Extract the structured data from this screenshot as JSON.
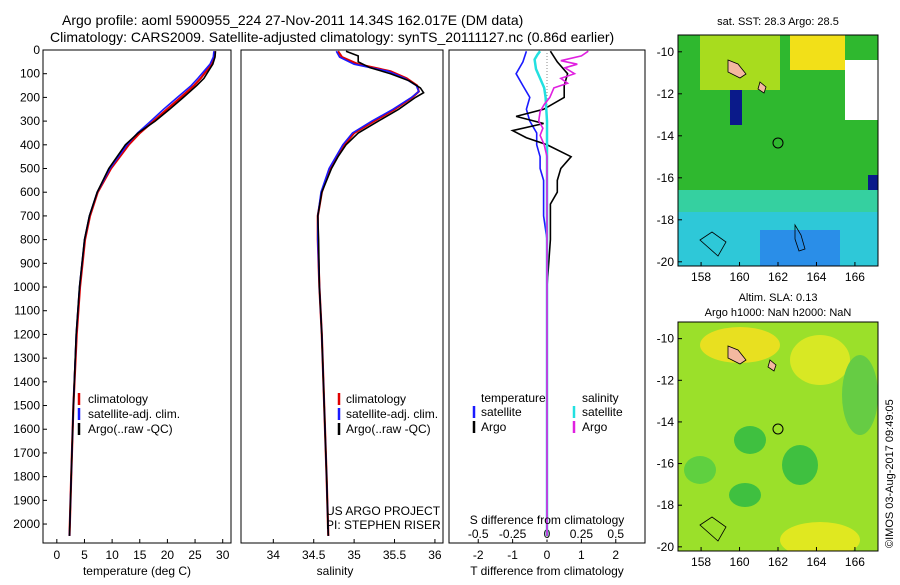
{
  "header": {
    "line1": "Argo profile: aoml 5900955_224 27-Nov-2011 14.34S 162.017E (DM data)",
    "line2": "Climatology: CARS2009. Satellite-adjusted climatology: synTS_20111127.nc (0.86d earlier)"
  },
  "colors": {
    "climatology": "#e00000",
    "satellite": "#1a1aff",
    "argo": "#000000",
    "sal_satellite": "#22e0e0",
    "sal_argo": "#e020e0"
  },
  "depth_axis": {
    "ticks": [
      0,
      100,
      200,
      300,
      400,
      500,
      600,
      700,
      800,
      900,
      1000,
      1100,
      1200,
      1300,
      1400,
      1500,
      1600,
      1700,
      1800,
      1900,
      2000
    ],
    "range": [
      0,
      2080
    ]
  },
  "chart_data": [
    {
      "type": "line",
      "id": "temperature",
      "xlabel": "temperature (deg C)",
      "xticks": [
        0,
        5,
        10,
        15,
        20,
        25,
        30
      ],
      "xlim": [
        -2.5,
        31.5
      ],
      "legend": [
        "climatology",
        "satellite-adj. clim.",
        "Argo(..raw -QC)"
      ],
      "series": [
        {
          "name": "climatology",
          "depth": [
            5,
            30,
            60,
            90,
            120,
            150,
            200,
            250,
            300,
            350,
            400,
            500,
            600,
            700,
            800,
            1000,
            1200,
            1500,
            1800,
            2050
          ],
          "values": [
            28.6,
            28.5,
            28.0,
            27.0,
            26.0,
            24.8,
            22.4,
            19.9,
            17.5,
            15.0,
            13.0,
            9.8,
            7.4,
            6.0,
            5.1,
            4.2,
            3.6,
            3.0,
            2.6,
            2.3
          ]
        },
        {
          "name": "satellite",
          "depth": [
            5,
            30,
            60,
            90,
            120,
            150,
            200,
            250,
            300,
            350,
            400,
            500,
            600,
            700,
            800,
            1000,
            1200,
            1500,
            1800,
            2050
          ],
          "values": [
            28.4,
            28.3,
            27.7,
            26.6,
            25.5,
            24.3,
            21.8,
            19.3,
            17.0,
            14.6,
            12.7,
            9.6,
            7.3,
            5.9,
            5.0,
            4.1,
            3.5,
            3.0,
            2.6,
            2.3
          ]
        },
        {
          "name": "argo",
          "depth": [
            5,
            30,
            60,
            90,
            120,
            150,
            200,
            250,
            300,
            350,
            400,
            500,
            600,
            700,
            800,
            1000,
            1200,
            1500,
            1800,
            2050
          ],
          "values": [
            28.7,
            28.6,
            28.2,
            27.4,
            26.6,
            25.3,
            22.9,
            20.4,
            17.8,
            14.7,
            12.4,
            9.4,
            7.3,
            5.9,
            5.0,
            4.1,
            3.5,
            3.0,
            2.6,
            2.3
          ]
        }
      ]
    },
    {
      "type": "line",
      "id": "salinity",
      "xlabel": "salinity",
      "xticks": [
        34,
        34.5,
        35,
        35.5,
        36
      ],
      "xlim": [
        33.6,
        36.1
      ],
      "legend": [
        "climatology",
        "satellite-adj. clim.",
        "Argo(..raw -QC)"
      ],
      "series": [
        {
          "name": "climatology",
          "depth": [
            5,
            30,
            60,
            90,
            120,
            150,
            175,
            200,
            250,
            300,
            350,
            400,
            500,
            600,
            700,
            800,
            1000,
            1200,
            1500,
            1800,
            2050
          ],
          "values": [
            34.8,
            34.85,
            35.05,
            35.45,
            35.65,
            35.78,
            35.8,
            35.72,
            35.5,
            35.25,
            35.0,
            34.88,
            34.7,
            34.6,
            34.55,
            34.55,
            34.57,
            34.6,
            34.63,
            34.66,
            34.68
          ]
        },
        {
          "name": "satellite",
          "depth": [
            5,
            30,
            60,
            90,
            120,
            150,
            175,
            200,
            250,
            300,
            350,
            400,
            500,
            600,
            700,
            800,
            1000,
            1200,
            1500,
            1800,
            2050
          ],
          "values": [
            34.78,
            34.82,
            35.0,
            35.42,
            35.63,
            35.77,
            35.8,
            35.71,
            35.48,
            35.22,
            34.98,
            34.86,
            34.69,
            34.59,
            34.55,
            34.55,
            34.57,
            34.6,
            34.63,
            34.66,
            34.68
          ]
        },
        {
          "name": "argo",
          "depth": [
            5,
            25,
            50,
            75,
            100,
            130,
            160,
            180,
            200,
            250,
            300,
            350,
            400,
            450,
            500,
            600,
            700,
            800,
            1000,
            1200,
            1500,
            1800,
            2050
          ],
          "values": [
            34.9,
            35.05,
            35.05,
            35.2,
            35.45,
            35.68,
            35.82,
            35.86,
            35.76,
            35.55,
            35.3,
            35.05,
            34.9,
            34.8,
            34.72,
            34.6,
            34.55,
            34.56,
            34.57,
            34.6,
            34.63,
            34.66,
            34.68
          ]
        }
      ]
    },
    {
      "type": "line",
      "id": "difference",
      "xlabel": "T difference from climatology",
      "top_xlabel": "S difference from climatology",
      "xticks": [
        -2,
        -1,
        0,
        1,
        2
      ],
      "top_xticks": [
        "-0.5",
        "-0.25",
        "0",
        "0.25",
        "0.5"
      ],
      "xlim": [
        -2.85,
        2.85
      ],
      "legend_left_title": "temperature",
      "legend_right_title": "salinity",
      "legend_left": [
        "satellite",
        "Argo"
      ],
      "legend_right": [
        "satellite",
        "Argo"
      ],
      "series": [
        {
          "name": "T satellite",
          "depth": [
            5,
            50,
            100,
            150,
            200,
            250,
            300,
            350,
            400,
            450,
            500,
            550,
            600,
            700,
            800,
            1000,
            1500,
            2050
          ],
          "values": [
            -0.6,
            -0.7,
            -0.9,
            -0.7,
            -0.5,
            -0.6,
            -0.5,
            -0.3,
            -0.3,
            -0.2,
            -0.2,
            -0.1,
            -0.1,
            -0.1,
            0,
            0,
            0,
            0
          ]
        },
        {
          "name": "T argo",
          "depth": [
            5,
            50,
            100,
            150,
            200,
            250,
            280,
            310,
            340,
            370,
            400,
            450,
            500,
            550,
            600,
            650,
            700,
            800,
            900,
            1000,
            1500,
            2050
          ],
          "values": [
            0.1,
            0.3,
            0.6,
            0.5,
            0.5,
            -0.1,
            -0.9,
            -0.1,
            -1.0,
            -0.6,
            0.0,
            0.7,
            0.4,
            0.3,
            0.3,
            0.1,
            0.1,
            0.1,
            0.05,
            0,
            0,
            0
          ]
        },
        {
          "name": "S satellite",
          "depth": [
            5,
            20,
            40,
            80,
            120,
            160,
            200,
            300,
            400,
            600,
            800,
            1000,
            1500,
            2050
          ],
          "values": [
            -0.05,
            -0.07,
            -0.09,
            -0.08,
            -0.05,
            -0.02,
            -0.01,
            0,
            0,
            0,
            0,
            0,
            0,
            0
          ]
        },
        {
          "name": "S argo",
          "depth": [
            5,
            25,
            45,
            60,
            75,
            100,
            120,
            140,
            160,
            200,
            230,
            260,
            300,
            330,
            360,
            400,
            450,
            500,
            600,
            800,
            1000,
            1500,
            2050
          ],
          "values": [
            0.3,
            0.25,
            0.1,
            0.22,
            0.13,
            0.2,
            0.1,
            0.15,
            0.05,
            0.02,
            -0.02,
            -0.05,
            -0.06,
            -0.03,
            -0.05,
            -0.02,
            0,
            0,
            0,
            0,
            0,
            0,
            0
          ]
        }
      ]
    }
  ],
  "maps": {
    "top_title": "sat. SST: 28.3 Argo: 28.5",
    "bottom_title1": "Altim. SLA: 0.13",
    "bottom_title2": "Argo h1000: NaN h2000: NaN",
    "lon_ticks": [
      "158",
      "160",
      "162",
      "164",
      "166"
    ],
    "lat_ticks": [
      "-10",
      "-12",
      "-14",
      "-16",
      "-18",
      "-20"
    ],
    "profile_marker": {
      "lon": 162.0,
      "lat": -14.34
    }
  },
  "project": {
    "line1": "US ARGO PROJECT",
    "line2": "PI: STEPHEN RISER"
  },
  "footer_stamp": "©IMOS 03-Aug-2017 09:49:05"
}
